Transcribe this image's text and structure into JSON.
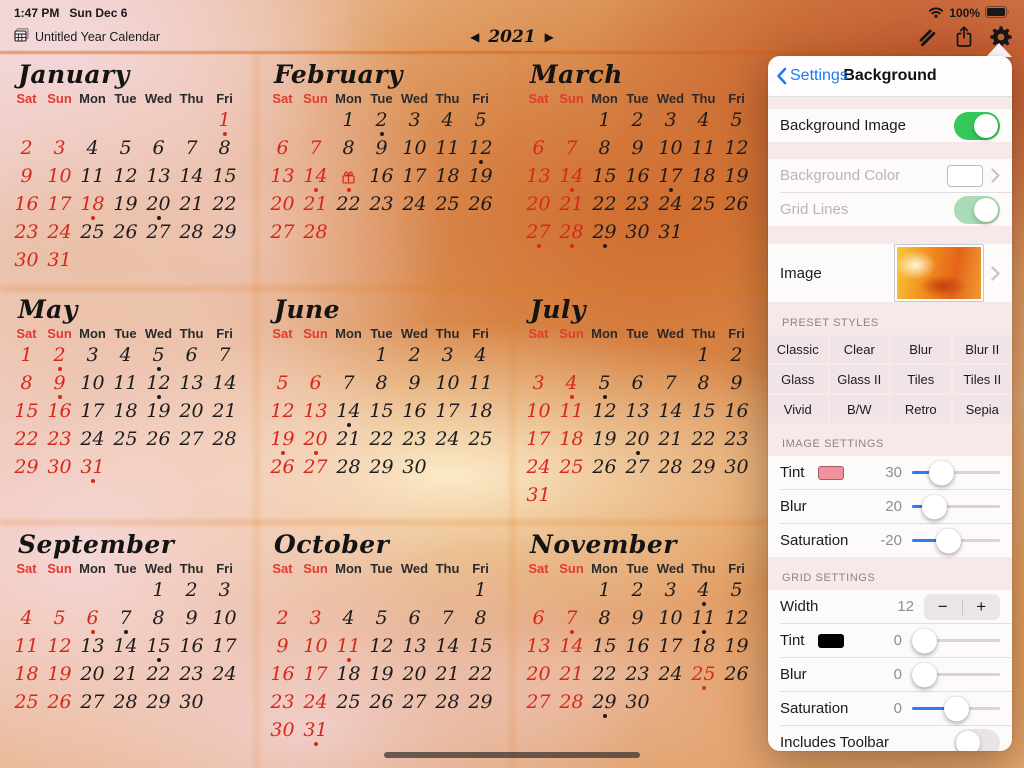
{
  "status_bar": {
    "time": "1:47 PM",
    "date": "Sun Dec 6",
    "battery_percent": "100%",
    "icons": [
      "wifi-icon",
      "battery-icon"
    ]
  },
  "toolbar": {
    "document_title": "Untitled Year Calendar",
    "document_icon": "calendar-doc-icon",
    "prev_arrow": "◀",
    "year": "2021",
    "next_arrow": "▶",
    "right_icons": [
      "styles-icon",
      "share-icon",
      "settings-gear-icon"
    ]
  },
  "calendar": {
    "day_headers": [
      "Sat",
      "Sun",
      "Mon",
      "Tue",
      "Wed",
      "Thu",
      "Fri"
    ],
    "colors": {
      "weekend_header": "#e23a2c",
      "red_day": "#d7281b",
      "black_day": "#1c1c1e"
    },
    "legend": "tokens: number, r = red/holiday, . = event dot, g = gift icon",
    "months": [
      {
        "name": "January",
        "weeks": [
          [
            "",
            "",
            "",
            "",
            "",
            "",
            "1r."
          ],
          [
            "2r",
            "3r",
            "4",
            "5",
            "6",
            "7",
            "8"
          ],
          [
            "9r",
            "10r",
            "11",
            "12",
            "13",
            "14",
            "15"
          ],
          [
            "16r",
            "17r",
            "18r.",
            "19",
            "20.",
            "21",
            "22"
          ],
          [
            "23r",
            "24r",
            "25",
            "26",
            "27",
            "28",
            "29"
          ],
          [
            "30r",
            "31r",
            "",
            "",
            "",
            "",
            ""
          ]
        ]
      },
      {
        "name": "February",
        "weeks": [
          [
            "",
            "",
            "1",
            "2.",
            "3",
            "4",
            "5"
          ],
          [
            "6r",
            "7r",
            "8",
            "9",
            "10",
            "11",
            "12."
          ],
          [
            "13r",
            "14r.",
            "15rg.",
            "16",
            "17",
            "18",
            "19"
          ],
          [
            "20r",
            "21r",
            "22",
            "23",
            "24",
            "25",
            "26"
          ],
          [
            "27r",
            "28r",
            "",
            "",
            "",
            "",
            ""
          ]
        ]
      },
      {
        "name": "March",
        "weeks": [
          [
            "",
            "",
            "1",
            "2",
            "3",
            "4",
            "5"
          ],
          [
            "6r",
            "7r",
            "8",
            "9",
            "10",
            "11",
            "12"
          ],
          [
            "13r",
            "14r.",
            "15",
            "16",
            "17.",
            "18",
            "19"
          ],
          [
            "20r",
            "21r",
            "22",
            "23",
            "24",
            "25",
            "26"
          ],
          [
            "27r.",
            "28r.",
            "29.",
            "30",
            "31",
            "",
            ""
          ]
        ]
      },
      {
        "name": "May",
        "weeks": [
          [
            "1r",
            "2r.",
            "3",
            "4",
            "5.",
            "6",
            "7"
          ],
          [
            "8r",
            "9r.",
            "10",
            "11",
            "12.",
            "13",
            "14"
          ],
          [
            "15r",
            "16r",
            "17",
            "18",
            "19",
            "20",
            "21"
          ],
          [
            "22r",
            "23r",
            "24",
            "25",
            "26",
            "27",
            "28"
          ],
          [
            "29r",
            "30r",
            "31r.",
            "",
            "",
            "",
            ""
          ]
        ]
      },
      {
        "name": "June",
        "weeks": [
          [
            "",
            "",
            "",
            "1",
            "2",
            "3",
            "4"
          ],
          [
            "5r",
            "6r",
            "7",
            "8",
            "9",
            "10",
            "11"
          ],
          [
            "12r",
            "13r",
            "14.",
            "15",
            "16",
            "17",
            "18"
          ],
          [
            "19r.",
            "20r.",
            "21",
            "22",
            "23",
            "24",
            "25"
          ],
          [
            "26r",
            "27r",
            "28",
            "29",
            "30",
            "",
            ""
          ]
        ]
      },
      {
        "name": "July",
        "weeks": [
          [
            "",
            "",
            "",
            "",
            "",
            "1",
            "2"
          ],
          [
            "3r",
            "4r.",
            "5.",
            "6",
            "7",
            "8",
            "9"
          ],
          [
            "10r",
            "11r",
            "12",
            "13",
            "14",
            "15",
            "16"
          ],
          [
            "17r",
            "18r",
            "19",
            "20.",
            "21",
            "22",
            "23"
          ],
          [
            "24r",
            "25r",
            "26",
            "27",
            "28",
            "29",
            "30"
          ],
          [
            "31r",
            "",
            "",
            "",
            "",
            "",
            ""
          ]
        ]
      },
      {
        "name": "September",
        "weeks": [
          [
            "",
            "",
            "",
            "",
            "1",
            "2",
            "3"
          ],
          [
            "4r",
            "5r",
            "6r.",
            "7.",
            "8",
            "9",
            "10"
          ],
          [
            "11r",
            "12r",
            "13",
            "14",
            "15.",
            "16",
            "17"
          ],
          [
            "18r",
            "19r",
            "20",
            "21",
            "22",
            "23",
            "24"
          ],
          [
            "25r",
            "26r",
            "27",
            "28",
            "29",
            "30",
            ""
          ]
        ]
      },
      {
        "name": "October",
        "weeks": [
          [
            "",
            "",
            "",
            "",
            "",
            "",
            "1"
          ],
          [
            "2r",
            "3r",
            "4",
            "5",
            "6",
            "7",
            "8"
          ],
          [
            "9r",
            "10r",
            "11r.",
            "12",
            "13",
            "14",
            "15"
          ],
          [
            "16r",
            "17r",
            "18",
            "19",
            "20",
            "21",
            "22"
          ],
          [
            "23r",
            "24r",
            "25",
            "26",
            "27",
            "28",
            "29"
          ],
          [
            "30r",
            "31r.",
            "",
            "",
            "",
            "",
            ""
          ]
        ]
      },
      {
        "name": "November",
        "weeks": [
          [
            "",
            "",
            "1",
            "2",
            "3",
            "4.",
            "5"
          ],
          [
            "6r",
            "7r.",
            "8",
            "9",
            "10",
            "11.",
            "12"
          ],
          [
            "13r",
            "14r",
            "15",
            "16",
            "17",
            "18",
            "19"
          ],
          [
            "20r",
            "21r",
            "22",
            "23",
            "24",
            "25r.",
            "26"
          ],
          [
            "27r",
            "28r",
            "29.",
            "30",
            "",
            "",
            ""
          ]
        ]
      }
    ]
  },
  "settings_panel": {
    "back_label": "Settings",
    "title": "Background",
    "accent_blue": "#1f7bf4",
    "toggle_green": "#34c759",
    "background_image_row": {
      "label": "Background Image",
      "on": true,
      "disabled": false
    },
    "background_color_row": {
      "label": "Background Color",
      "disabled": true
    },
    "grid_lines_row": {
      "label": "Grid Lines",
      "on": true,
      "disabled": true
    },
    "image_row": {
      "label": "Image"
    },
    "preset_styles": {
      "header": "PRESET STYLES",
      "buttons": [
        "Classic",
        "Clear",
        "Blur",
        "Blur II",
        "Glass",
        "Glass II",
        "Tiles",
        "Tiles II",
        "Vivid",
        "B/W",
        "Retro",
        "Sepia"
      ]
    },
    "image_settings": {
      "header": "IMAGE SETTINGS",
      "rows": [
        {
          "label": "Tint",
          "swatch": "#f2919e",
          "value": "30",
          "pct": 34
        },
        {
          "label": "Blur",
          "value": "20",
          "pct": 26
        },
        {
          "label": "Saturation",
          "value": "-20",
          "pct": 42
        }
      ]
    },
    "grid_settings": {
      "header": "GRID SETTINGS",
      "width_row": {
        "label": "Width",
        "value": "12",
        "minus": "−",
        "plus": "+"
      },
      "rows": [
        {
          "label": "Tint",
          "swatch": "#000000",
          "value": "0",
          "pct": 5
        },
        {
          "label": "Blur",
          "value": "0",
          "pct": 5
        },
        {
          "label": "Saturation",
          "value": "0",
          "pct": 50
        }
      ]
    },
    "includes_toolbar_row": {
      "label": "Includes Toolbar",
      "on": false
    }
  }
}
